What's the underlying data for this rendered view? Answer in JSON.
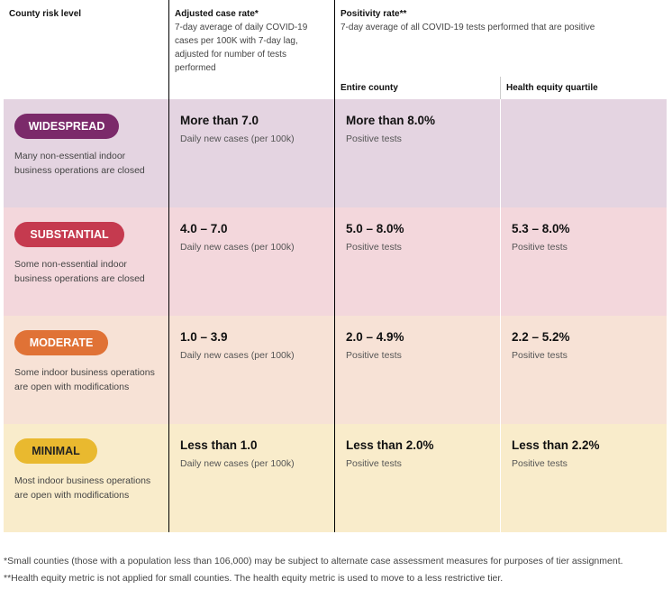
{
  "header": {
    "col1_title": "County risk level",
    "col2_title": "Adjusted case rate*",
    "col2_desc": "7-day average of daily COVID-19 cases per 100K with 7-day lag, adjusted for number of tests performed",
    "col3_title": "Positivity rate**",
    "col3_desc": "7-day average of all COVID-19 tests performed that are positive",
    "sub_entire": "Entire county",
    "sub_equity": "Health equity quartile"
  },
  "rows": [
    {
      "tier": "WIDESPREAD",
      "desc": "Many non-essential indoor business operations are closed",
      "case_value": "More than 7.0",
      "case_unit": "Daily new cases (per 100k)",
      "pos_value": "More than 8.0%",
      "pos_unit": "Positive tests",
      "equity_value": "",
      "equity_unit": "",
      "pill_color": "#7b2a6a",
      "bg_color": "#e4d4e1"
    },
    {
      "tier": "SUBSTANTIAL",
      "desc": "Some non-essential indoor business operations are closed",
      "case_value": "4.0 – 7.0",
      "case_unit": "Daily new cases (per 100k)",
      "pos_value": "5.0 – 8.0%",
      "pos_unit": "Positive tests",
      "equity_value": "5.3 – 8.0%",
      "equity_unit": "Positive tests",
      "pill_color": "#c53a4f",
      "bg_color": "#f3d7dc"
    },
    {
      "tier": "MODERATE",
      "desc": "Some indoor business operations are open with modifications",
      "case_value": "1.0 – 3.9",
      "case_unit": "Daily new cases (per 100k)",
      "pos_value": "2.0 – 4.9%",
      "pos_unit": "Positive tests",
      "equity_value": "2.2 – 5.2%",
      "equity_unit": "Positive tests",
      "pill_color": "#e07236",
      "bg_color": "#f7e2d6"
    },
    {
      "tier": "MINIMAL",
      "desc": "Most indoor business operations are open with modifications",
      "case_value": "Less than 1.0",
      "case_unit": "Daily new cases (per 100k)",
      "pos_value": "Less than 2.0%",
      "pos_unit": "Positive tests",
      "equity_value": "Less than 2.2%",
      "equity_unit": "Positive tests",
      "pill_color": "#e9b92f",
      "bg_color": "#f9eccb"
    }
  ],
  "footer": {
    "note1": "*Small counties (those with a population less than 106,000) may be subject to alternate case assessment measures for purposes of tier assignment.",
    "note2": "**Health equity metric is not applied for small counties. The health equity metric is used to move to a less restrictive tier."
  }
}
